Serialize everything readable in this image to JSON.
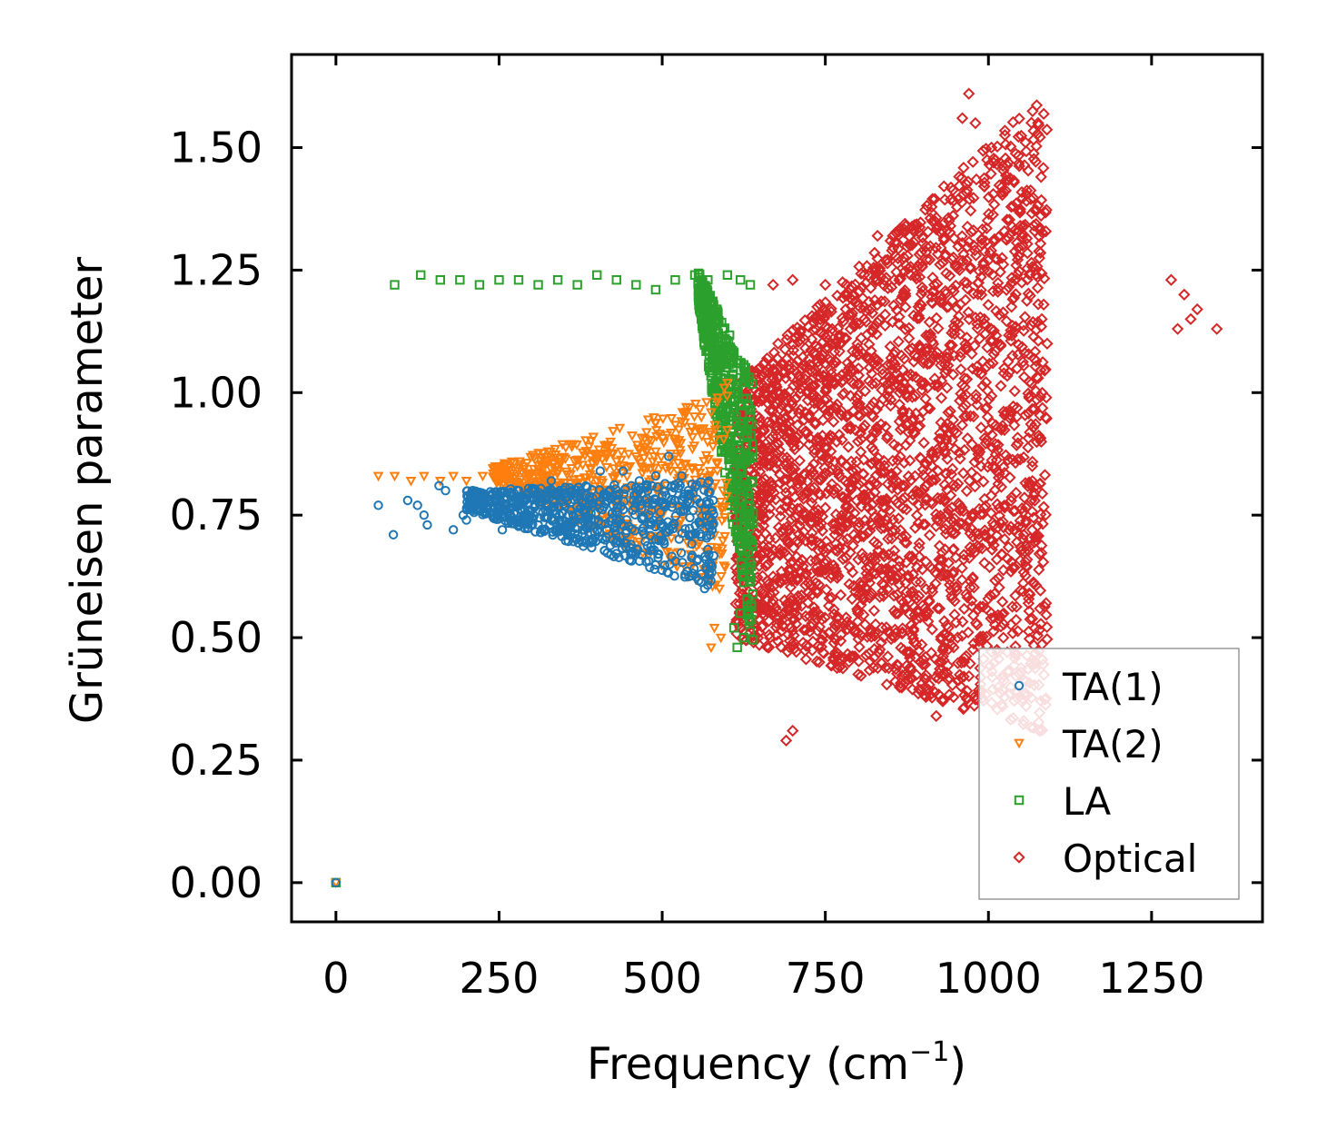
{
  "chart_data": {
    "type": "scatter",
    "xlabel": "Frequency (cm",
    "xlabel_superscript": "−1",
    "xlabel_close": ")",
    "ylabel": "Grüneisen parameter",
    "xlim": [
      -68,
      1420
    ],
    "ylim": [
      -0.08,
      1.69
    ],
    "x_ticks": [
      0,
      250,
      500,
      750,
      1000,
      1250
    ],
    "x_tick_labels": [
      "0",
      "250",
      "500",
      "750",
      "1000",
      "1250"
    ],
    "y_ticks": [
      0.0,
      0.25,
      0.5,
      0.75,
      1.0,
      1.25,
      1.5
    ],
    "y_tick_labels": [
      "0.00",
      "0.25",
      "0.50",
      "0.75",
      "1.00",
      "1.25",
      "1.50"
    ],
    "legend_position": "lower-right",
    "series": [
      {
        "name": "TA(1)",
        "color": "#1f77b4",
        "marker": "circle",
        "points": [
          [
            0,
            0
          ],
          [
            65,
            0.77
          ],
          [
            88,
            0.71
          ],
          [
            110,
            0.78
          ],
          [
            125,
            0.77
          ],
          [
            135,
            0.75
          ],
          [
            140,
            0.73
          ],
          [
            158,
            0.81
          ],
          [
            168,
            0.8
          ],
          [
            180,
            0.72
          ],
          [
            195,
            0.75
          ],
          [
            200,
            0.74
          ],
          [
            210,
            0.8
          ],
          [
            225,
            0.77
          ],
          [
            240,
            0.79
          ],
          [
            255,
            0.72
          ],
          [
            270,
            0.74
          ],
          [
            285,
            0.76
          ],
          [
            300,
            0.8
          ],
          [
            310,
            0.73
          ],
          [
            330,
            0.82
          ],
          [
            345,
            0.79
          ],
          [
            360,
            0.76
          ],
          [
            375,
            0.8
          ],
          [
            390,
            0.78
          ],
          [
            405,
            0.84
          ],
          [
            415,
            0.72
          ],
          [
            430,
            0.79
          ],
          [
            440,
            0.84
          ],
          [
            455,
            0.76
          ],
          [
            465,
            0.82
          ],
          [
            480,
            0.75
          ],
          [
            490,
            0.83
          ],
          [
            500,
            0.79
          ],
          [
            510,
            0.87
          ],
          [
            520,
            0.78
          ],
          [
            530,
            0.83
          ],
          [
            540,
            0.8
          ],
          [
            545,
            0.71
          ],
          [
            555,
            0.66
          ],
          [
            560,
            0.63
          ],
          [
            565,
            0.6
          ],
          [
            570,
            0.68
          ],
          [
            575,
            0.65
          ]
        ],
        "cluster": {
          "x": [
            200,
            580
          ],
          "y_low": [
            0.76,
            0.6
          ],
          "y_high": [
            0.8,
            0.82
          ],
          "count": 700
        }
      },
      {
        "name": "TA(2)",
        "color": "#ff7f0e",
        "marker": "triangle-down",
        "points": [
          [
            0,
            0
          ],
          [
            65,
            0.83
          ],
          [
            90,
            0.83
          ],
          [
            115,
            0.82
          ],
          [
            135,
            0.83
          ],
          [
            160,
            0.82
          ],
          [
            180,
            0.83
          ],
          [
            200,
            0.82
          ],
          [
            225,
            0.83
          ],
          [
            250,
            0.82
          ],
          [
            280,
            0.84
          ],
          [
            310,
            0.83
          ],
          [
            340,
            0.84
          ],
          [
            370,
            0.85
          ],
          [
            400,
            0.86
          ],
          [
            430,
            0.86
          ],
          [
            460,
            0.87
          ],
          [
            490,
            0.88
          ],
          [
            520,
            0.9
          ],
          [
            545,
            0.93
          ],
          [
            560,
            0.95
          ],
          [
            575,
            0.96
          ],
          [
            585,
            0.99
          ],
          [
            595,
            1.01
          ],
          [
            600,
            1.02
          ],
          [
            580,
            0.52
          ],
          [
            575,
            0.48
          ],
          [
            590,
            0.5
          ]
        ],
        "cluster": {
          "x": [
            240,
            600
          ],
          "y_low": [
            0.82,
            0.58
          ],
          "y_high": [
            0.85,
            1.0
          ],
          "count": 600
        }
      },
      {
        "name": "LA",
        "color": "#2ca02c",
        "marker": "square",
        "points": [
          [
            0,
            0
          ],
          [
            90,
            1.22
          ],
          [
            130,
            1.24
          ],
          [
            160,
            1.23
          ],
          [
            190,
            1.23
          ],
          [
            220,
            1.22
          ],
          [
            250,
            1.23
          ],
          [
            280,
            1.23
          ],
          [
            310,
            1.22
          ],
          [
            340,
            1.23
          ],
          [
            370,
            1.22
          ],
          [
            400,
            1.24
          ],
          [
            430,
            1.23
          ],
          [
            460,
            1.22
          ],
          [
            490,
            1.21
          ],
          [
            520,
            1.23
          ],
          [
            550,
            1.24
          ],
          [
            570,
            1.23
          ],
          [
            600,
            1.24
          ],
          [
            620,
            1.23
          ],
          [
            635,
            1.22
          ],
          [
            560,
            1.15
          ],
          [
            570,
            1.14
          ],
          [
            580,
            1.1
          ],
          [
            585,
            1.06
          ],
          [
            590,
            1.03
          ],
          [
            600,
            0.98
          ],
          [
            605,
            0.95
          ],
          [
            610,
            0.52
          ],
          [
            615,
            0.48
          ],
          [
            625,
            0.5
          ],
          [
            620,
            0.55
          ]
        ],
        "cluster": {
          "x": [
            555,
            640
          ],
          "y_low": [
            1.18,
            0.46
          ],
          "y_high": [
            1.25,
            1.02
          ],
          "count": 500
        }
      },
      {
        "name": "Optical",
        "color": "#d62728",
        "marker": "diamond",
        "points": [
          [
            690,
            0.29
          ],
          [
            700,
            0.31
          ],
          [
            920,
            0.34
          ],
          [
            930,
            0.37
          ],
          [
            960,
            1.56
          ],
          [
            970,
            1.61
          ],
          [
            980,
            1.55
          ],
          [
            1040,
            0.72
          ],
          [
            1090,
            1.1
          ],
          [
            1280,
            1.23
          ],
          [
            1300,
            1.2
          ],
          [
            1320,
            1.17
          ],
          [
            1350,
            1.13
          ],
          [
            1290,
            1.13
          ],
          [
            1310,
            1.15
          ],
          [
            670,
            1.22
          ],
          [
            700,
            1.23
          ],
          [
            750,
            1.22
          ],
          [
            830,
            1.32
          ],
          [
            880,
            1.3
          ],
          [
            890,
            0.58
          ],
          [
            1020,
            0.67
          ]
        ],
        "cluster": {
          "x": [
            612,
            1090
          ],
          "y_low": [
            0.5,
            0.3
          ],
          "y_high": [
            1.02,
            1.62
          ],
          "count": 2800
        }
      }
    ]
  }
}
